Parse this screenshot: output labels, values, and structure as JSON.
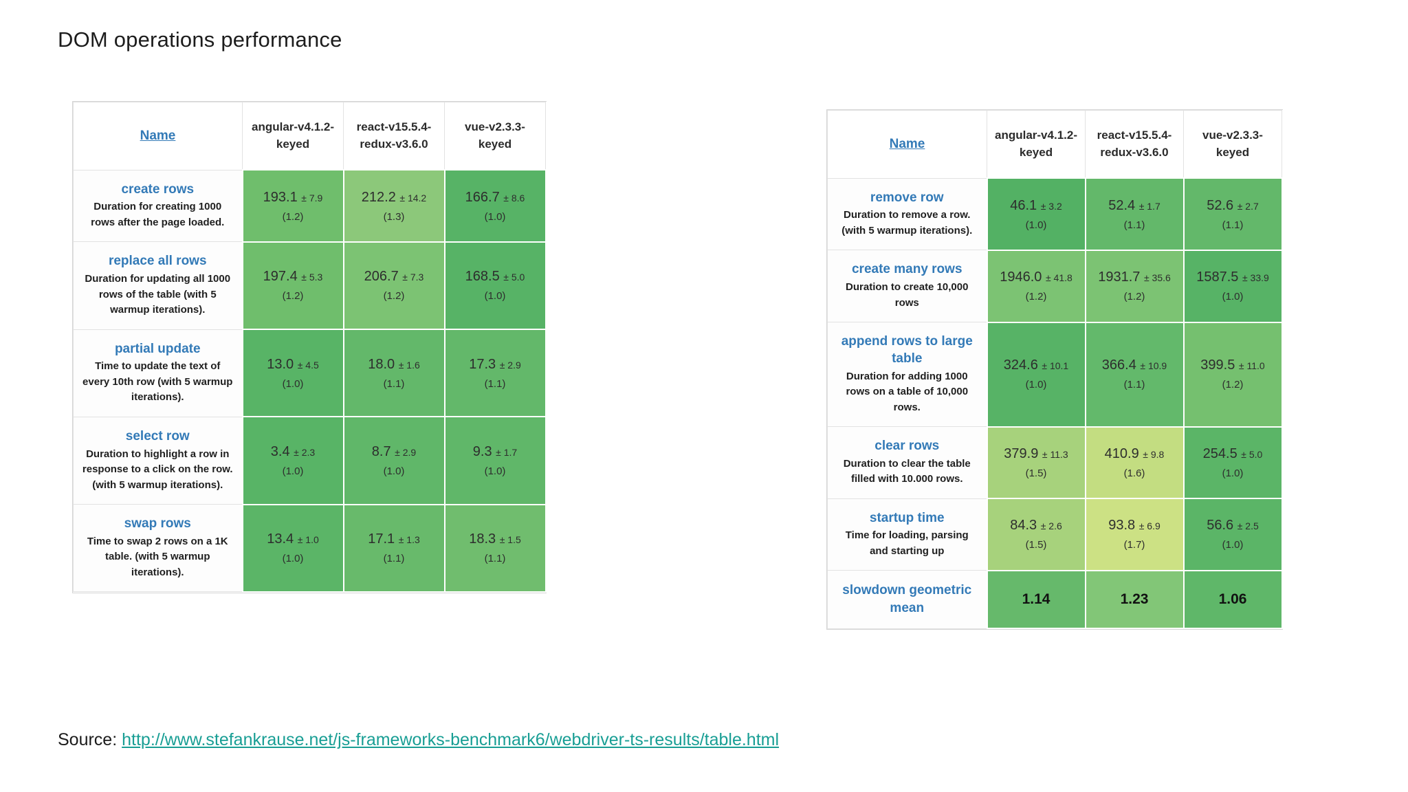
{
  "title": "DOM operations performance",
  "column_headers": {
    "name": "Name",
    "frameworks": [
      "angular-v4.1.2-keyed",
      "react-v15.5.4-redux-v3.6.0",
      "vue-v2.3.3-keyed"
    ]
  },
  "left_table": {
    "rows": [
      {
        "name": "create rows",
        "description": "Duration for creating 1000 rows after the page loaded.",
        "cells": [
          {
            "value": "193.1",
            "error": "± 7.9",
            "factor": "(1.2)",
            "color": "#6fbe6c"
          },
          {
            "value": "212.2",
            "error": "± 14.2",
            "factor": "(1.3)",
            "color": "#8cc87a"
          },
          {
            "value": "166.7",
            "error": "± 8.6",
            "factor": "(1.0)",
            "color": "#57b366"
          }
        ]
      },
      {
        "name": "replace all rows",
        "description": "Duration for updating all 1000 rows of the table (with 5 warmup iterations).",
        "cells": [
          {
            "value": "197.4",
            "error": "± 5.3",
            "factor": "(1.2)",
            "color": "#6fbe6c"
          },
          {
            "value": "206.7",
            "error": "± 7.3",
            "factor": "(1.2)",
            "color": "#7cc373"
          },
          {
            "value": "168.5",
            "error": "± 5.0",
            "factor": "(1.0)",
            "color": "#57b366"
          }
        ]
      },
      {
        "name": "partial update",
        "description": "Time to update the text of every 10th row (with 5 warmup iterations).",
        "cells": [
          {
            "value": "13.0",
            "error": "± 4.5",
            "factor": "(1.0)",
            "color": "#58b466"
          },
          {
            "value": "18.0",
            "error": "± 1.6",
            "factor": "(1.1)",
            "color": "#63b86a"
          },
          {
            "value": "17.3",
            "error": "± 2.9",
            "factor": "(1.1)",
            "color": "#63b86a"
          }
        ]
      },
      {
        "name": "select row",
        "description": "Duration to highlight a row in response to a click on the row. (with 5 warmup iterations).",
        "cells": [
          {
            "value": "3.4",
            "error": "± 2.3",
            "factor": "(1.0)",
            "color": "#58b466"
          },
          {
            "value": "8.7",
            "error": "± 2.9",
            "factor": "(1.0)",
            "color": "#60b769"
          },
          {
            "value": "9.3",
            "error": "± 1.7",
            "factor": "(1.0)",
            "color": "#60b769"
          }
        ]
      },
      {
        "name": "swap rows",
        "description": "Time to swap 2 rows on a 1K table. (with 5 warmup iterations).",
        "cells": [
          {
            "value": "13.4",
            "error": "± 1.0",
            "factor": "(1.0)",
            "color": "#5bb567"
          },
          {
            "value": "17.1",
            "error": "± 1.3",
            "factor": "(1.1)",
            "color": "#68ba6b"
          },
          {
            "value": "18.3",
            "error": "± 1.5",
            "factor": "(1.1)",
            "color": "#70bd6e"
          }
        ]
      }
    ]
  },
  "right_table": {
    "rows": [
      {
        "name": "remove row",
        "description": "Duration to remove a row. (with 5 warmup iterations).",
        "cells": [
          {
            "value": "46.1",
            "error": "± 3.2",
            "factor": "(1.0)",
            "color": "#53b164"
          },
          {
            "value": "52.4",
            "error": "± 1.7",
            "factor": "(1.1)",
            "color": "#63b86a"
          },
          {
            "value": "52.6",
            "error": "± 2.7",
            "factor": "(1.1)",
            "color": "#63b86a"
          }
        ]
      },
      {
        "name": "create many rows",
        "description": "Duration to create 10,000 rows",
        "cells": [
          {
            "value": "1946.0",
            "error": "± 41.8",
            "factor": "(1.2)",
            "color": "#7cc373"
          },
          {
            "value": "1931.7",
            "error": "± 35.6",
            "factor": "(1.2)",
            "color": "#7cc373"
          },
          {
            "value": "1587.5",
            "error": "± 33.9",
            "factor": "(1.0)",
            "color": "#57b366"
          }
        ]
      },
      {
        "name": "append rows to large table",
        "description": "Duration for adding 1000 rows on a table of 10,000 rows.",
        "cells": [
          {
            "value": "324.6",
            "error": "± 10.1",
            "factor": "(1.0)",
            "color": "#57b366"
          },
          {
            "value": "366.4",
            "error": "± 10.9",
            "factor": "(1.1)",
            "color": "#63b96b"
          },
          {
            "value": "399.5",
            "error": "± 11.0",
            "factor": "(1.2)",
            "color": "#75c06f"
          }
        ]
      },
      {
        "name": "clear rows",
        "description": "Duration to clear the table filled with 10.000 rows.",
        "cells": [
          {
            "value": "379.9",
            "error": "± 11.3",
            "factor": "(1.5)",
            "color": "#a7d27c"
          },
          {
            "value": "410.9",
            "error": "± 9.8",
            "factor": "(1.6)",
            "color": "#c3dd81"
          },
          {
            "value": "254.5",
            "error": "± 5.0",
            "factor": "(1.0)",
            "color": "#5bb567"
          }
        ]
      },
      {
        "name": "startup time",
        "description": "Time for loading, parsing and starting up",
        "cells": [
          {
            "value": "84.3",
            "error": "± 2.6",
            "factor": "(1.5)",
            "color": "#a7d27c"
          },
          {
            "value": "93.8",
            "error": "± 6.9",
            "factor": "(1.7)",
            "color": "#cce184"
          },
          {
            "value": "56.6",
            "error": "± 2.5",
            "factor": "(1.0)",
            "color": "#5bb567"
          }
        ]
      }
    ],
    "summary_row": {
      "name": "slowdown geometric mean",
      "values": [
        {
          "text": "1.14",
          "color": "#66b96b"
        },
        {
          "text": "1.23",
          "color": "#82c677"
        },
        {
          "text": "1.06",
          "color": "#5fb769"
        }
      ]
    }
  },
  "source": {
    "label": "Source:",
    "url": "http://www.stefankrause.net/js-frameworks-benchmark6/webdriver-ts-results/table.html"
  },
  "colors": {
    "link_blue": "#337ab7",
    "source_link_teal": "#189e94",
    "table_border": "#d5d5d5"
  }
}
